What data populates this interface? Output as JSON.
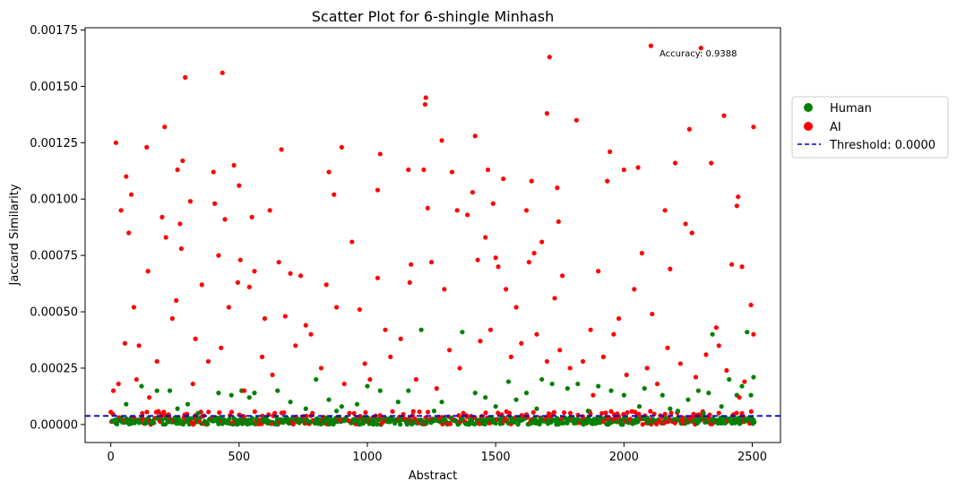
{
  "chart_data": {
    "type": "scatter",
    "title": "Scatter Plot for 6-shingle Minhash",
    "xlabel": "Abstract",
    "ylabel": "Jaccard Similarity",
    "xlim": [
      -100,
      2610
    ],
    "ylim": [
      -8e-05,
      0.00176
    ],
    "xticks": [
      0,
      500,
      1000,
      1500,
      2000,
      2500
    ],
    "xtick_labels": [
      "0",
      "500",
      "1000",
      "1500",
      "2000",
      "2500"
    ],
    "yticks": [
      0.0,
      0.00025,
      0.0005,
      0.00075,
      0.001,
      0.00125,
      0.0015,
      0.00175
    ],
    "ytick_labels": [
      "0.00000",
      "0.00025",
      "0.00050",
      "0.00075",
      "0.00100",
      "0.00125",
      "0.00150",
      "0.00175"
    ],
    "grid": false,
    "legend_position": "outside-right",
    "annotation": "Accuracy: 0.9388",
    "threshold": {
      "label": "Threshold: 0.0000",
      "value": 3.8e-05,
      "color": "#0000cc"
    },
    "series": [
      {
        "name": "Human",
        "color": "#008000",
        "points": [
          [
            120,
            0.00017
          ],
          [
            180,
            0.00015
          ],
          [
            230,
            0.00015
          ],
          [
            300,
            9e-05
          ],
          [
            420,
            0.00014
          ],
          [
            470,
            0.00013
          ],
          [
            510,
            0.00015
          ],
          [
            560,
            0.00014
          ],
          [
            650,
            0.00015
          ],
          [
            700,
            0.0001
          ],
          [
            800,
            0.0002
          ],
          [
            850,
            0.00011
          ],
          [
            900,
            8e-05
          ],
          [
            1000,
            0.00017
          ],
          [
            1050,
            0.00015
          ],
          [
            1120,
            0.0001
          ],
          [
            1160,
            0.00015
          ],
          [
            1210,
            0.00042
          ],
          [
            1290,
            0.0001
          ],
          [
            1370,
            0.00041
          ],
          [
            1420,
            0.00014
          ],
          [
            1460,
            0.00012
          ],
          [
            1500,
            8e-05
          ],
          [
            1550,
            0.00019
          ],
          [
            1580,
            0.00011
          ],
          [
            1620,
            0.00014
          ],
          [
            1680,
            0.0002
          ],
          [
            1720,
            0.00018
          ],
          [
            1780,
            0.00016
          ],
          [
            1820,
            0.00018
          ],
          [
            1900,
            0.00017
          ],
          [
            1950,
            0.00015
          ],
          [
            2000,
            0.00013
          ],
          [
            2080,
            0.00016
          ],
          [
            2150,
            0.00013
          ],
          [
            2180,
            7e-05
          ],
          [
            2250,
            0.00011
          ],
          [
            2290,
            0.00015
          ],
          [
            2330,
            0.00014
          ],
          [
            2345,
            0.0004
          ],
          [
            2380,
            8e-05
          ],
          [
            2410,
            0.0002
          ],
          [
            2440,
            0.00013
          ],
          [
            2460,
            0.00017
          ],
          [
            2480,
            0.00041
          ],
          [
            2495,
            0.00013
          ],
          [
            2505,
            0.00021
          ],
          [
            60,
            9e-05
          ],
          [
            260,
            7e-05
          ],
          [
            540,
            0.00012
          ],
          [
            760,
            7e-05
          ],
          [
            960,
            9e-05
          ],
          [
            1260,
            6e-05
          ],
          [
            1660,
            7e-05
          ],
          [
            1860,
            6e-05
          ],
          [
            2060,
            8e-05
          ],
          [
            2210,
            6e-05
          ],
          [
            2310,
            5e-05
          ],
          [
            340,
            5e-05
          ],
          [
            880,
            6e-05
          ]
        ]
      },
      {
        "name": "AI",
        "color": "#ff0000",
        "points": [
          [
            20,
            0.00125
          ],
          [
            40,
            0.00095
          ],
          [
            55,
            0.00036
          ],
          [
            60,
            0.0011
          ],
          [
            70,
            0.00085
          ],
          [
            80,
            0.00102
          ],
          [
            90,
            0.00052
          ],
          [
            110,
            0.00035
          ],
          [
            140,
            0.00123
          ],
          [
            145,
            0.00068
          ],
          [
            180,
            0.00028
          ],
          [
            200,
            0.00092
          ],
          [
            210,
            0.00132
          ],
          [
            215,
            0.00083
          ],
          [
            240,
            0.00047
          ],
          [
            255,
            0.00055
          ],
          [
            260,
            0.00113
          ],
          [
            270,
            0.00089
          ],
          [
            275,
            0.00078
          ],
          [
            280,
            0.00117
          ],
          [
            290,
            0.00154
          ],
          [
            310,
            0.00099
          ],
          [
            330,
            0.00038
          ],
          [
            355,
            0.00062
          ],
          [
            400,
            0.00112
          ],
          [
            405,
            0.00098
          ],
          [
            420,
            0.00075
          ],
          [
            435,
            0.00156
          ],
          [
            445,
            0.00091
          ],
          [
            460,
            0.00052
          ],
          [
            480,
            0.00115
          ],
          [
            495,
            0.00063
          ],
          [
            500,
            0.00106
          ],
          [
            505,
            0.00073
          ],
          [
            540,
            0.00061
          ],
          [
            550,
            0.00092
          ],
          [
            560,
            0.00068
          ],
          [
            600,
            0.00047
          ],
          [
            620,
            0.00095
          ],
          [
            655,
            0.00072
          ],
          [
            665,
            0.00122
          ],
          [
            680,
            0.00048
          ],
          [
            700,
            0.00067
          ],
          [
            740,
            0.00066
          ],
          [
            760,
            0.00044
          ],
          [
            840,
            0.00062
          ],
          [
            850,
            0.00112
          ],
          [
            870,
            0.00102
          ],
          [
            880,
            0.00052
          ],
          [
            900,
            0.00123
          ],
          [
            940,
            0.00081
          ],
          [
            970,
            0.00051
          ],
          [
            1040,
            0.00104
          ],
          [
            1050,
            0.0012
          ],
          [
            1040,
            0.00065
          ],
          [
            1070,
            0.00042
          ],
          [
            1160,
            0.00113
          ],
          [
            1165,
            0.00063
          ],
          [
            1170,
            0.00071
          ],
          [
            1220,
            0.00113
          ],
          [
            1225,
            0.00142
          ],
          [
            1228,
            0.00145
          ],
          [
            1235,
            0.00096
          ],
          [
            1250,
            0.00072
          ],
          [
            1290,
            0.00126
          ],
          [
            1300,
            0.0006
          ],
          [
            1330,
            0.00112
          ],
          [
            1350,
            0.00095
          ],
          [
            1390,
            0.00093
          ],
          [
            1410,
            0.00103
          ],
          [
            1420,
            0.00128
          ],
          [
            1430,
            0.00073
          ],
          [
            1460,
            0.00083
          ],
          [
            1470,
            0.00113
          ],
          [
            1490,
            0.00098
          ],
          [
            1500,
            0.00074
          ],
          [
            1510,
            0.0007
          ],
          [
            1530,
            0.00109
          ],
          [
            1540,
            0.0006
          ],
          [
            1580,
            0.00052
          ],
          [
            1620,
            0.00095
          ],
          [
            1630,
            0.00072
          ],
          [
            1640,
            0.00108
          ],
          [
            1650,
            0.00076
          ],
          [
            1680,
            0.00081
          ],
          [
            1700,
            0.00138
          ],
          [
            1710,
            0.00163
          ],
          [
            1730,
            0.00056
          ],
          [
            1740,
            0.00105
          ],
          [
            1745,
            0.0009
          ],
          [
            1760,
            0.00066
          ],
          [
            1815,
            0.00135
          ],
          [
            1870,
            0.00042
          ],
          [
            1900,
            0.00068
          ],
          [
            1935,
            0.00108
          ],
          [
            1945,
            0.00121
          ],
          [
            1980,
            0.00047
          ],
          [
            2000,
            0.00113
          ],
          [
            2040,
            0.0006
          ],
          [
            2055,
            0.00114
          ],
          [
            2070,
            0.00076
          ],
          [
            2105,
            0.00168
          ],
          [
            2110,
            0.00049
          ],
          [
            2160,
            0.00095
          ],
          [
            2180,
            0.00069
          ],
          [
            2200,
            0.00116
          ],
          [
            2240,
            0.00089
          ],
          [
            2255,
            0.00131
          ],
          [
            2265,
            0.00085
          ],
          [
            2300,
            0.00167
          ],
          [
            2340,
            0.00116
          ],
          [
            2360,
            0.00043
          ],
          [
            2390,
            0.00137
          ],
          [
            2420,
            0.00071
          ],
          [
            2440,
            0.00097
          ],
          [
            2445,
            0.00101
          ],
          [
            2460,
            0.0007
          ],
          [
            2495,
            0.00053
          ],
          [
            2505,
            0.00132
          ],
          [
            2505,
            0.0004
          ],
          [
            30,
            0.00018
          ],
          [
            100,
            0.0002
          ],
          [
            150,
            0.00012
          ],
          [
            320,
            0.00018
          ],
          [
            380,
            0.00028
          ],
          [
            520,
            0.00015
          ],
          [
            590,
            0.0003
          ],
          [
            630,
            0.00022
          ],
          [
            720,
            0.00035
          ],
          [
            780,
            0.0004
          ],
          [
            820,
            0.00025
          ],
          [
            910,
            0.00018
          ],
          [
            990,
            0.00027
          ],
          [
            1090,
            0.0003
          ],
          [
            1130,
            0.00038
          ],
          [
            1190,
            0.0002
          ],
          [
            1270,
            0.00016
          ],
          [
            1320,
            0.00033
          ],
          [
            1360,
            0.00025
          ],
          [
            1440,
            0.00037
          ],
          [
            1480,
            0.00042
          ],
          [
            1560,
            0.0003
          ],
          [
            1600,
            0.00036
          ],
          [
            1660,
            0.0004
          ],
          [
            1700,
            0.00028
          ],
          [
            1750,
            0.00033
          ],
          [
            1790,
            0.00025
          ],
          [
            1840,
            0.00028
          ],
          [
            1880,
            0.00013
          ],
          [
            1920,
            0.0003
          ],
          [
            1960,
            0.0004
          ],
          [
            2010,
            0.00022
          ],
          [
            2090,
            0.00025
          ],
          [
            2130,
            0.00018
          ],
          [
            2170,
            0.00034
          ],
          [
            2220,
            0.00027
          ],
          [
            2280,
            0.00021
          ],
          [
            2320,
            0.00031
          ],
          [
            2370,
            0.00035
          ],
          [
            2400,
            0.00024
          ],
          [
            2450,
            0.00012
          ],
          [
            2470,
            0.00019
          ],
          [
            10,
            0.00015
          ],
          [
            430,
            0.00034
          ],
          [
            1010,
            0.0002
          ]
        ]
      }
    ]
  }
}
